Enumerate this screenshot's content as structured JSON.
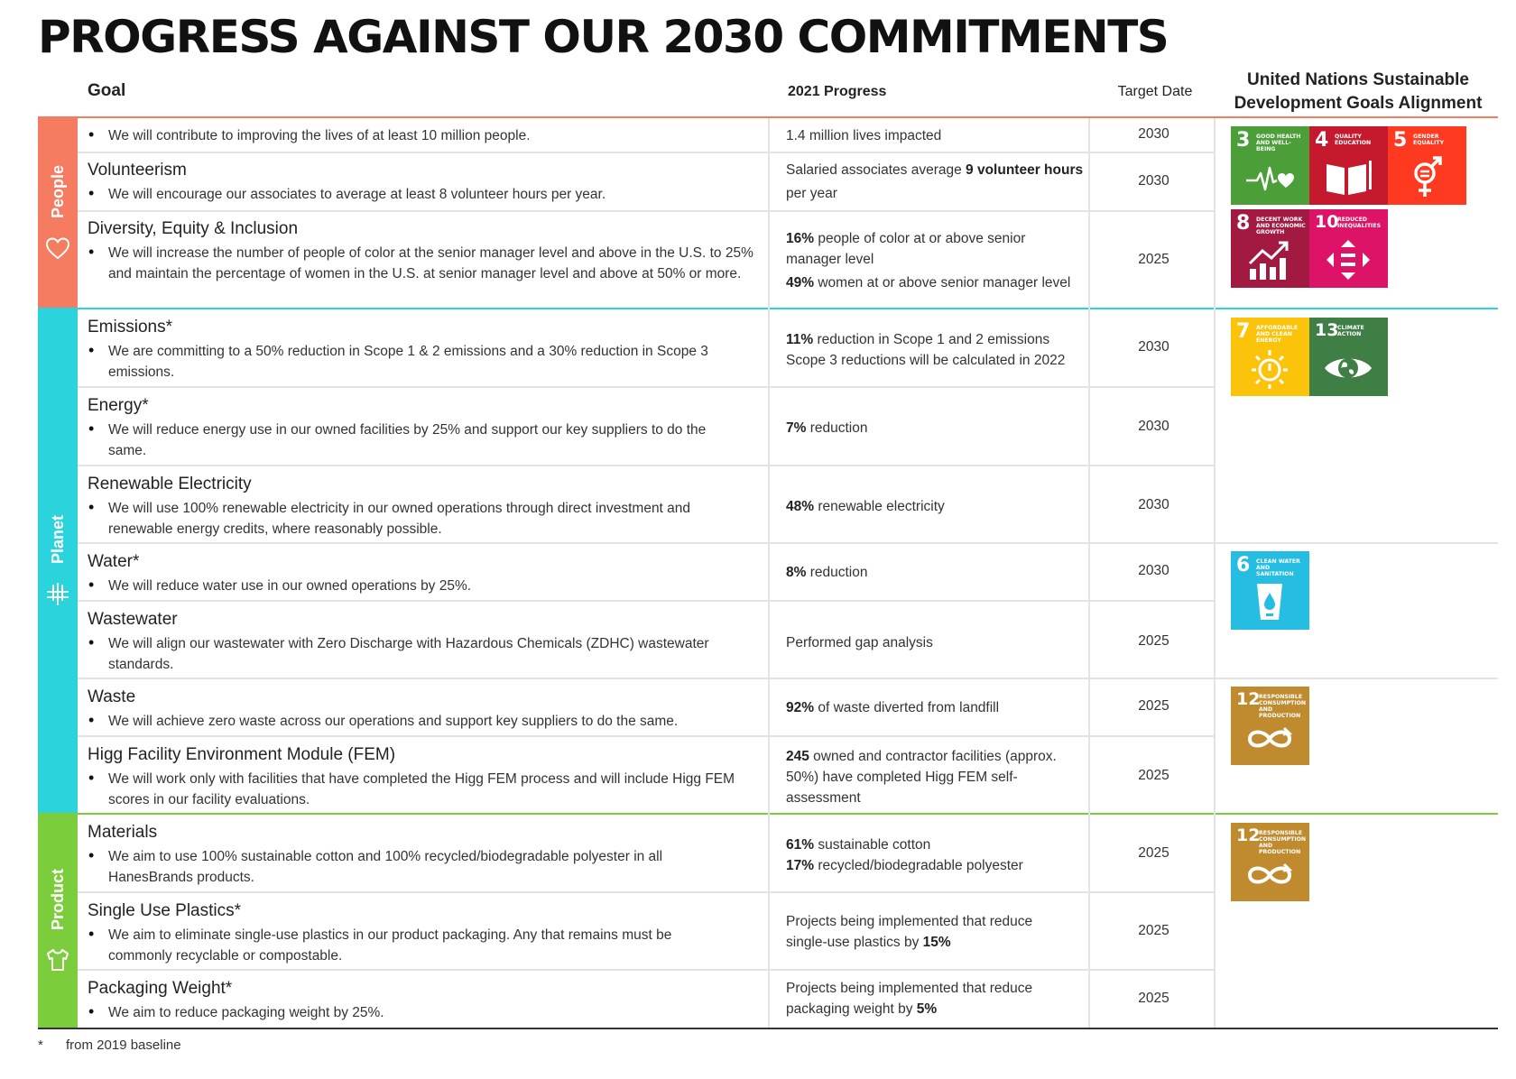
{
  "title": "PROGRESS AGAINST OUR 2030 COMMITMENTS",
  "headers": {
    "goal": "Goal",
    "progress": "2021 Progress",
    "target": "Target Date",
    "sdg_line1": "United Nations Sustainable",
    "sdg_line2": "Development Goals Alignment"
  },
  "colors": {
    "people": "#f57b61",
    "planet": "#2bd4dc",
    "product": "#7ccd3c",
    "divider": "#e3e3e3",
    "bottom_line": "#333333"
  },
  "sections": [
    {
      "id": "people",
      "label": "People",
      "icon": "heart-icon"
    },
    {
      "id": "planet",
      "label": "Planet",
      "icon": "tree-icon"
    },
    {
      "id": "product",
      "label": "Product",
      "icon": "shirt-icon"
    }
  ],
  "rows": [
    {
      "title": "",
      "text": "We will contribute to improving the lives of at least 10 million people.",
      "progress": [
        {
          "bold": "",
          "text": "1.4 million lives impacted"
        }
      ],
      "target": "2030"
    },
    {
      "title": "Volunteerism",
      "text": "We will encourage our associates to average at least 8 volunteer hours per year.",
      "progress": [
        {
          "pre": "Salaried associates average ",
          "bold": "9 volunteer hours",
          "text": " per year"
        }
      ],
      "target": "2030"
    },
    {
      "title": "Diversity, Equity & Inclusion",
      "text": "We will increase the number of people of color at the senior manager level and above in the U.S. to 25% and maintain the percentage of women in the U.S. at senior manager level and above at 50% or more.",
      "progress": [
        {
          "bold": "16%",
          "text": " people of color at or above senior manager level"
        },
        {
          "bold": "49%",
          "text": " women at or above senior manager level"
        }
      ],
      "target": "2025"
    },
    {
      "title": "Emissions*",
      "text": "We are committing to a 50% reduction in Scope 1 & 2 emissions and a 30% reduction in Scope 3 emissions.",
      "progress": [
        {
          "bold": "11%",
          "text": " reduction in Scope 1 and 2 emissions"
        },
        {
          "bold": "",
          "text": "Scope 3 reductions will be calculated in 2022"
        }
      ],
      "target": "2030"
    },
    {
      "title": "Energy*",
      "text": "We will reduce energy use in our owned facilities by 25% and support our key suppliers to do the same.",
      "progress": [
        {
          "bold": "7%",
          "text": " reduction"
        }
      ],
      "target": "2030"
    },
    {
      "title": "Renewable Electricity",
      "text": "We will use 100% renewable electricity in our owned operations through direct investment and renewable energy credits, where reasonably possible.",
      "progress": [
        {
          "bold": "48%",
          "text": " renewable electricity"
        }
      ],
      "target": "2030"
    },
    {
      "title": "Water*",
      "text": "We will reduce water use in our owned operations by 25%.",
      "progress": [
        {
          "bold": "8%",
          "text": " reduction"
        }
      ],
      "target": "2030"
    },
    {
      "title": "Wastewater",
      "text": "We will align our wastewater with Zero Discharge with Hazardous Chemicals (ZDHC) wastewater standards.",
      "progress": [
        {
          "bold": "",
          "text": "Performed gap analysis"
        }
      ],
      "target": "2025"
    },
    {
      "title": "Waste",
      "text": "We will achieve zero waste across our operations and support key suppliers to do the same.",
      "progress": [
        {
          "bold": "92%",
          "text": " of waste diverted from landfill"
        }
      ],
      "target": "2025"
    },
    {
      "title": "Higg Facility Environment Module (FEM)",
      "text": "We will work only with facilities that have completed the Higg FEM process and will include Higg FEM scores in our facility evaluations.",
      "progress": [
        {
          "bold": "245",
          "text": " owned and contractor facilities (approx. 50%) have completed Higg FEM self-assessment"
        }
      ],
      "target": "2025"
    },
    {
      "title": "Materials",
      "text": "We aim to use 100% sustainable cotton and 100% recycled/biodegradable polyester in all HanesBrands products.",
      "progress": [
        {
          "bold": "61%",
          "text": " sustainable cotton"
        },
        {
          "bold": "17%",
          "text": " recycled/biodegradable polyester"
        }
      ],
      "target": "2025"
    },
    {
      "title": "Single Use Plastics*",
      "text": "We aim to eliminate single-use plastics in our product packaging. Any that remains must be commonly recyclable or compostable.",
      "progress": [
        {
          "pre": "Projects being implemented that reduce single-use plastics by ",
          "bold": "15%",
          "text": ""
        }
      ],
      "target": "2025"
    },
    {
      "title": "Packaging Weight*",
      "text": "We aim to reduce packaging weight by 25%.",
      "progress": [
        {
          "pre": "Projects being implemented that reduce packaging weight by ",
          "bold": "5%",
          "text": ""
        }
      ],
      "target": "2025"
    }
  ],
  "sdg_tiles": [
    {
      "num": "3",
      "caption": "GOOD HEALTH AND WELL-BEING",
      "color": "#4c9f38",
      "icon": "heartbeat-icon"
    },
    {
      "num": "4",
      "caption": "QUALITY EDUCATION",
      "color": "#c5192d",
      "icon": "book-icon"
    },
    {
      "num": "5",
      "caption": "GENDER EQUALITY",
      "color": "#ff3a21",
      "icon": "gender-icon"
    },
    {
      "num": "8",
      "caption": "DECENT WORK AND ECONOMIC GROWTH",
      "color": "#a21942",
      "icon": "growth-chart-icon"
    },
    {
      "num": "10",
      "caption": "REDUCED INEQUALITIES",
      "color": "#dd1367",
      "icon": "equality-arrows-icon"
    },
    {
      "num": "7",
      "caption": "AFFORDABLE AND CLEAN ENERGY",
      "color": "#fcc30b",
      "icon": "sun-power-icon"
    },
    {
      "num": "13",
      "caption": "CLIMATE ACTION",
      "color": "#3f7e44",
      "icon": "eye-globe-icon"
    },
    {
      "num": "6",
      "caption": "CLEAN WATER AND SANITATION",
      "color": "#26bde2",
      "icon": "water-glass-icon"
    },
    {
      "num": "12",
      "caption": "RESPONSIBLE CONSUMPTION AND PRODUCTION",
      "color": "#bf8b2e",
      "icon": "infinity-icon"
    },
    {
      "num": "12",
      "caption": "RESPONSIBLE CONSUMPTION AND PRODUCTION",
      "color": "#bf8b2e",
      "icon": "infinity-icon"
    }
  ],
  "footnote": {
    "marker": "*",
    "text": "from 2019 baseline"
  }
}
